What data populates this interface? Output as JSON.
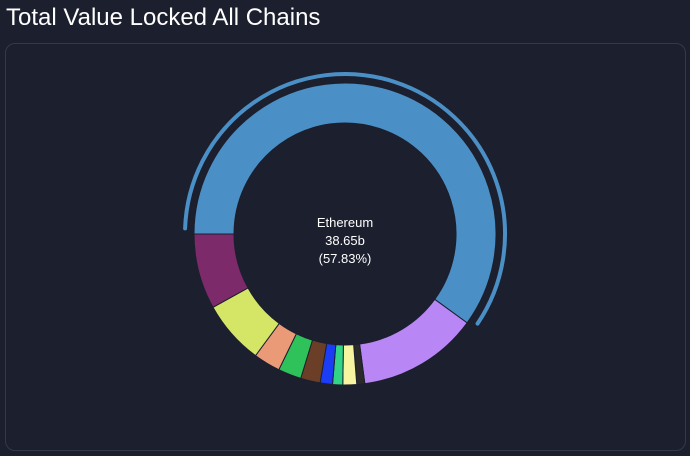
{
  "page": {
    "title": "Total Value Locked All Chains"
  },
  "chart_data": {
    "type": "pie",
    "donut": true,
    "legend": "none",
    "highlighted_index": 0,
    "center_label": {
      "name": "Ethereum",
      "value": "38.65b",
      "percent": "(57.83%)"
    },
    "slices": [
      {
        "name": "Ethereum",
        "value": 38.65,
        "percent": 57.83,
        "color": "#4a90c6"
      },
      {
        "name": "",
        "value": 8.3,
        "percent": 12.4,
        "color": "#b987f5"
      },
      {
        "name": "",
        "value": 0.55,
        "percent": 0.8,
        "color": "#2a2a2a"
      },
      {
        "name": "",
        "value": 0.95,
        "percent": 1.4,
        "color": "#f8f5a0"
      },
      {
        "name": "",
        "value": 0.7,
        "percent": 1.05,
        "color": "#32d486"
      },
      {
        "name": "",
        "value": 0.85,
        "percent": 1.3,
        "color": "#1a3df5"
      },
      {
        "name": "",
        "value": 1.35,
        "percent": 2.0,
        "color": "#6b3f27"
      },
      {
        "name": "",
        "value": 1.6,
        "percent": 2.4,
        "color": "#2fc15a"
      },
      {
        "name": "",
        "value": 1.85,
        "percent": 2.75,
        "color": "#eb9a78"
      },
      {
        "name": "",
        "value": 4.4,
        "percent": 6.6,
        "color": "#d5e565"
      },
      {
        "name": "",
        "value": 5.2,
        "percent": 7.8,
        "color": "#7c2a6a"
      }
    ]
  }
}
